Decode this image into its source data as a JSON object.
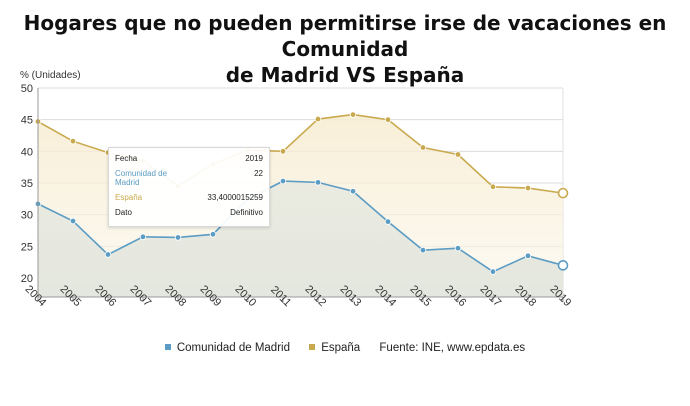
{
  "title_line1": "Hogares que no pueden permitirse irse de vacaciones en Comunidad",
  "title_line2": "de Madrid VS España",
  "chart_data": {
    "type": "line",
    "ylabel": "% (Unidades)",
    "ylim": [
      17,
      50
    ],
    "yticks": [
      20,
      25,
      30,
      35,
      40,
      45,
      50
    ],
    "categories": [
      "2004",
      "2005",
      "2006",
      "2007",
      "2008",
      "2009",
      "2010",
      "2011",
      "2012",
      "2013",
      "2014",
      "2015",
      "2016",
      "2017",
      "2018",
      "2019"
    ],
    "series": [
      {
        "name": "Comunidad de Madrid",
        "color": "#5b9cc4",
        "values": [
          31.7,
          29.0,
          23.7,
          26.5,
          26.4,
          26.9,
          32.5,
          35.3,
          35.1,
          33.7,
          28.9,
          24.4,
          24.7,
          21.0,
          23.5,
          22.0
        ]
      },
      {
        "name": "España",
        "color": "#c9a94e",
        "values": [
          44.7,
          41.6,
          39.8,
          38.5,
          34.5,
          38.0,
          40.2,
          40.0,
          45.1,
          45.8,
          45.0,
          40.6,
          39.5,
          34.4,
          34.2,
          33.4
        ]
      }
    ],
    "grid": "horizontal",
    "legend_position": "bottom"
  },
  "legend": {
    "madrid": "Comunidad de Madrid",
    "espana": "España",
    "source": "Fuente: INE, www.epdata.es"
  },
  "tooltip": {
    "fecha_label": "Fecha",
    "fecha_value": "2019",
    "madrid_label": "Comunidad de Madrid",
    "madrid_value": "22",
    "espana_label": "España",
    "espana_value": "33,4000015259",
    "dato_label": "Dato",
    "dato_value": "Definitivo"
  },
  "colors": {
    "madrid": "#5b9cc4",
    "espana": "#c9a94e"
  }
}
